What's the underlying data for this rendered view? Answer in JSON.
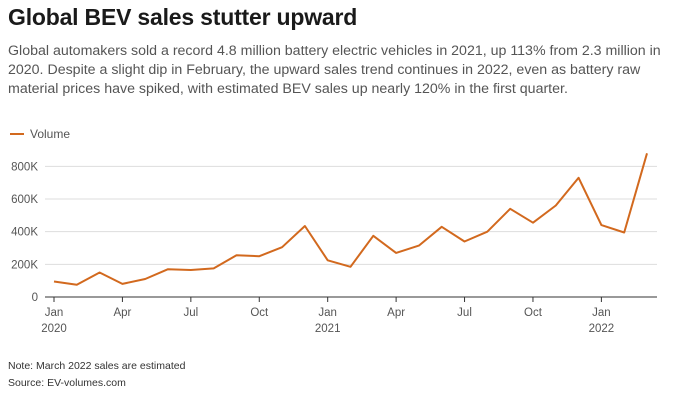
{
  "title": "Global BEV sales stutter upward",
  "subtitle": "Global automakers sold a record 4.8 million battery electric vehicles in 2021, up 113% from 2.3 million in 2020. Despite a slight dip in February, the upward sales trend continues in 2022, even as battery raw material prices have spiked, with estimated BEV sales up nearly 120% in the first quarter.",
  "note": "Note: March 2022 sales are estimated",
  "source": "Source: EV-volumes.com",
  "colors": {
    "line": "#d2691e",
    "grid": "#dddddd",
    "axis": "#333333"
  },
  "chart_data": {
    "type": "line",
    "title": "Global BEV sales stutter upward",
    "xlabel": "",
    "ylabel": "",
    "ylim": [
      0,
      900000
    ],
    "yticks": [
      0,
      200000,
      400000,
      600000,
      800000
    ],
    "ytick_labels": [
      "0",
      "200K",
      "400K",
      "600K",
      "800K"
    ],
    "xticks": [
      {
        "index": 0,
        "label": "Jan",
        "sublabel": "2020"
      },
      {
        "index": 3,
        "label": "Apr",
        "sublabel": ""
      },
      {
        "index": 6,
        "label": "Jul",
        "sublabel": ""
      },
      {
        "index": 9,
        "label": "Oct",
        "sublabel": ""
      },
      {
        "index": 12,
        "label": "Jan",
        "sublabel": "2021"
      },
      {
        "index": 15,
        "label": "Apr",
        "sublabel": ""
      },
      {
        "index": 18,
        "label": "Jul",
        "sublabel": ""
      },
      {
        "index": 21,
        "label": "Oct",
        "sublabel": ""
      },
      {
        "index": 24,
        "label": "Jan",
        "sublabel": "2022"
      }
    ],
    "grid": true,
    "legend_position": "top-left",
    "series": [
      {
        "name": "Volume",
        "values": [
          95000,
          75000,
          150000,
          80000,
          110000,
          170000,
          165000,
          175000,
          255000,
          250000,
          305000,
          435000,
          225000,
          185000,
          375000,
          270000,
          315000,
          430000,
          340000,
          400000,
          540000,
          455000,
          560000,
          730000,
          440000,
          395000,
          880000
        ]
      }
    ]
  }
}
